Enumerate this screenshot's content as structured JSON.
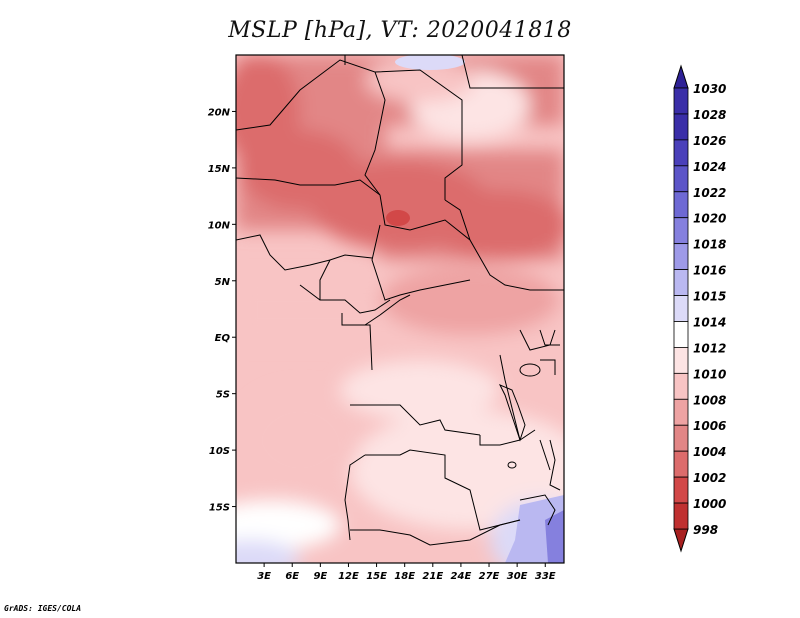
{
  "title": "MSLP [hPa], VT: 2020041818",
  "credit": "GrADS: IGES/COLA",
  "map": {
    "lon_range": [
      0,
      35
    ],
    "lat_range": [
      -20,
      25
    ],
    "y_ticks": [
      {
        "lat": 20,
        "label": "20N"
      },
      {
        "lat": 15,
        "label": "15N"
      },
      {
        "lat": 10,
        "label": "10N"
      },
      {
        "lat": 5,
        "label": "5N"
      },
      {
        "lat": 0,
        "label": "EQ"
      },
      {
        "lat": -5,
        "label": "5S"
      },
      {
        "lat": -10,
        "label": "10S"
      },
      {
        "lat": -15,
        "label": "15S"
      }
    ],
    "x_ticks": [
      {
        "lon": 3,
        "label": "3E"
      },
      {
        "lon": 6,
        "label": "6E"
      },
      {
        "lon": 9,
        "label": "9E"
      },
      {
        "lon": 12,
        "label": "12E"
      },
      {
        "lon": 15,
        "label": "15E"
      },
      {
        "lon": 18,
        "label": "18E"
      },
      {
        "lon": 21,
        "label": "21E"
      },
      {
        "lon": 24,
        "label": "24E"
      },
      {
        "lon": 27,
        "label": "27E"
      },
      {
        "lon": 30,
        "label": "30E"
      },
      {
        "lon": 33,
        "label": "33E"
      }
    ]
  },
  "colorbar": {
    "levels": [
      {
        "label": "1030",
        "color": "#2e2196"
      },
      {
        "label": "1028",
        "color": "#3a2ea8"
      },
      {
        "label": "1026",
        "color": "#4a40ba"
      },
      {
        "label": "1024",
        "color": "#5c55c8"
      },
      {
        "label": "1022",
        "color": "#6e69d4"
      },
      {
        "label": "1020",
        "color": "#8580de"
      },
      {
        "label": "1018",
        "color": "#9e9ae8"
      },
      {
        "label": "1016",
        "color": "#bab8f1"
      },
      {
        "label": "1015",
        "color": "#dcdaf8"
      },
      {
        "label": "1014",
        "color": "#ffffff"
      },
      {
        "label": "1012",
        "color": "#fde4e4"
      },
      {
        "label": "1010",
        "color": "#f8c4c4"
      },
      {
        "label": "1008",
        "color": "#eea3a3"
      },
      {
        "label": "1006",
        "color": "#e28686"
      },
      {
        "label": "1004",
        "color": "#dc6c6c"
      },
      {
        "label": "1002",
        "color": "#d24848"
      },
      {
        "label": "1000",
        "color": "#c03030"
      },
      {
        "label": "998",
        "color": "#a82020"
      }
    ]
  }
}
